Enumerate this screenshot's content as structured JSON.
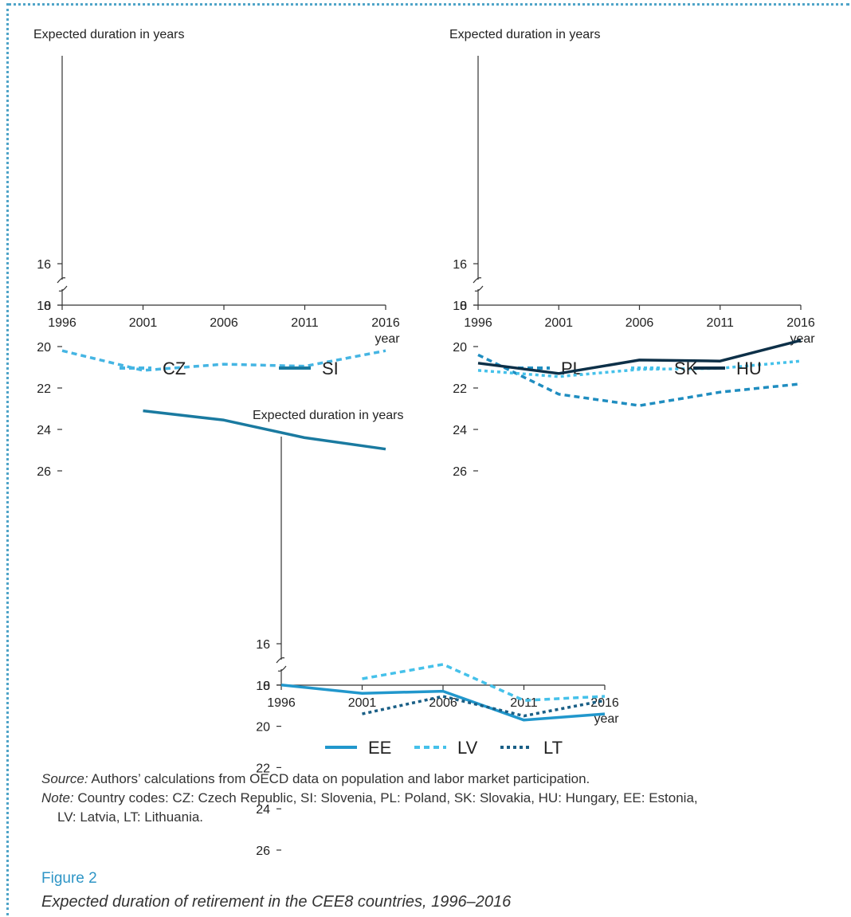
{
  "colors": {
    "frame": "#4fa4c8",
    "axis": "#333333",
    "figure_label": "#2e95c6"
  },
  "chart_data": [
    {
      "type": "line",
      "ylabel": "Expected duration in years",
      "xlabel": "year",
      "x": [
        1996,
        2001,
        2006,
        2011,
        2016
      ],
      "x_ticks": [
        "1996",
        "2001",
        "2006",
        "2011",
        "2016"
      ],
      "y_ticks": [
        "0",
        "16",
        "18",
        "20",
        "22",
        "24",
        "26"
      ],
      "ylim": [
        14.5,
        26
      ],
      "axis_break": "between 0 and 16",
      "legend_position": "bottom",
      "series": [
        {
          "name": "CZ",
          "values": [
            20.2,
            21.15,
            20.85,
            20.95,
            20.2
          ],
          "color": "#45b5e3",
          "style": "dashed"
        },
        {
          "name": "SI",
          "values": [
            null,
            23.1,
            23.55,
            24.4,
            24.95
          ],
          "color": "#1a7aa0",
          "style": "solid"
        }
      ]
    },
    {
      "type": "line",
      "ylabel": "Expected duration in years",
      "xlabel": "year",
      "x": [
        1996,
        2001,
        2006,
        2011,
        2016
      ],
      "x_ticks": [
        "1996",
        "2001",
        "2006",
        "2011",
        "2016"
      ],
      "y_ticks": [
        "0",
        "16",
        "18",
        "20",
        "22",
        "24",
        "26"
      ],
      "ylim": [
        14.5,
        26
      ],
      "axis_break": "between 0 and 16",
      "legend_position": "bottom",
      "series": [
        {
          "name": "PL",
          "values": [
            20.4,
            22.3,
            22.85,
            22.2,
            21.8
          ],
          "color": "#1f8dc0",
          "style": "dashed"
        },
        {
          "name": "SK",
          "values": [
            21.15,
            21.45,
            21.1,
            21.05,
            20.7
          ],
          "color": "#45c1ea",
          "style": "dotted"
        },
        {
          "name": "HU",
          "values": [
            20.8,
            21.3,
            20.65,
            20.7,
            19.7
          ],
          "color": "#0d3048",
          "style": "solid"
        }
      ]
    },
    {
      "type": "line",
      "ylabel": "Expected duration in years",
      "xlabel": "year",
      "x": [
        1996,
        2001,
        2006,
        2011,
        2016
      ],
      "x_ticks": [
        "1996",
        "2001",
        "2006",
        "2011",
        "2016"
      ],
      "y_ticks": [
        "0",
        "16",
        "18",
        "20",
        "22",
        "24",
        "26"
      ],
      "ylim": [
        14.5,
        26
      ],
      "axis_break": "between 0 and 16",
      "legend_position": "bottom",
      "series": [
        {
          "name": "EE",
          "values": [
            18.0,
            18.4,
            18.3,
            19.7,
            19.4
          ],
          "color": "#2197cc",
          "style": "solid"
        },
        {
          "name": "LV",
          "values": [
            null,
            17.7,
            17.0,
            18.75,
            18.55
          ],
          "color": "#45c1ea",
          "style": "dashed"
        },
        {
          "name": "LT",
          "values": [
            null,
            19.4,
            18.55,
            19.5,
            18.75
          ],
          "color": "#1a5f86",
          "style": "dotted"
        }
      ]
    }
  ],
  "source": {
    "label": "Source:",
    "text": " Authors’ calculations from OECD data on population and labor market participation."
  },
  "note": {
    "label": "Note:",
    "text": " Country codes: CZ: Czech Republic, SI: Slovenia, PL: Poland, SK: Slovakia, HU: Hungary, EE: Estonia,",
    "text2": "LV: Latvia, LT: Lithuania."
  },
  "figure": {
    "number": "Figure 2",
    "title": "Expected duration of retirement in the CEE8 countries, 1996–2016"
  }
}
